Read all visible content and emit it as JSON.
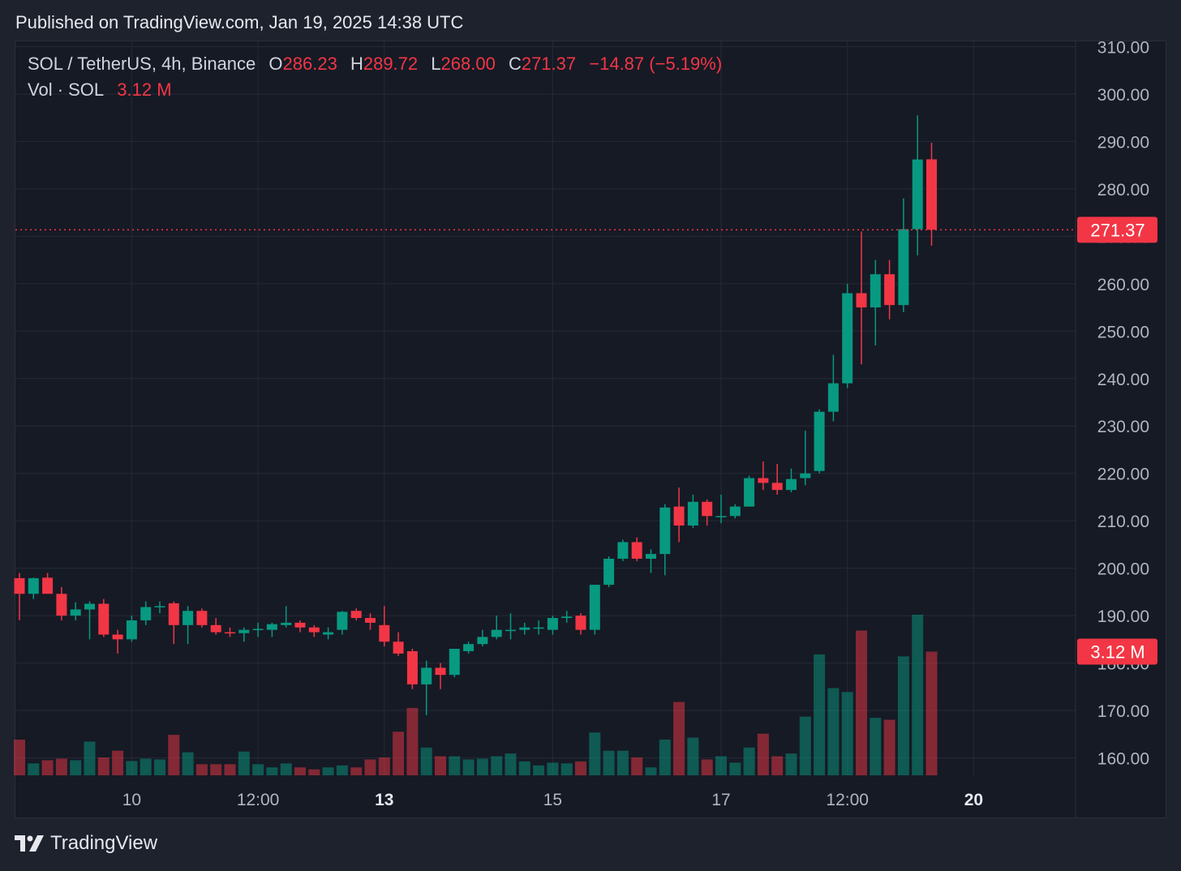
{
  "published_text": "Published on TradingView.com, Jan 19, 2025 14:38 UTC",
  "legend": {
    "symbol": "SOL / TetherUS, 4h, Binance",
    "open_label": "O",
    "open_value": "286.23",
    "high_label": "H",
    "high_value": "289.72",
    "low_label": "L",
    "low_value": "268.00",
    "close_label": "C",
    "close_value": "271.37",
    "change": "−14.87 (−5.19%)",
    "vol_label": "Vol · SOL",
    "vol_value": "3.12 M"
  },
  "price_badge": "271.37",
  "volume_badge": "3.12 M",
  "footer_brand": "TradingView",
  "icons": {
    "logo": "tradingview-logo-icon"
  },
  "colors": {
    "up": "#089981",
    "down": "#f23645",
    "background": "#161a25",
    "grid": "#252a36"
  },
  "chart_data": {
    "type": "candlestick",
    "title": "SOL / TetherUS, 4h, Binance",
    "y_ticks": [
      "310.00",
      "300.00",
      "290.00",
      "280.00",
      "270.00",
      "260.00",
      "250.00",
      "240.00",
      "230.00",
      "220.00",
      "210.00",
      "200.00",
      "190.00",
      "180.00",
      "170.00",
      "160.00"
    ],
    "ylim": [
      156.4,
      310.9
    ],
    "x_ticks": [
      {
        "label": "10",
        "index": 8,
        "bold": false
      },
      {
        "label": "12:00",
        "index": 17,
        "bold": false
      },
      {
        "label": "13",
        "index": 26,
        "bold": true
      },
      {
        "label": "15",
        "index": 38,
        "bold": false
      },
      {
        "label": "17",
        "index": 50,
        "bold": false
      },
      {
        "label": "12:00",
        "index": 59,
        "bold": false
      },
      {
        "label": "20",
        "index": 68,
        "bold": true
      }
    ],
    "grid": true,
    "candles": [
      {
        "o": 197.9,
        "h": 199.0,
        "l": 189.0,
        "c": 194.6,
        "v": 0.9
      },
      {
        "o": 194.6,
        "h": 198.0,
        "l": 193.5,
        "c": 197.9,
        "v": 0.3
      },
      {
        "o": 198.0,
        "h": 199.0,
        "l": 196.0,
        "c": 194.6,
        "v": 0.38
      },
      {
        "o": 194.6,
        "h": 196.0,
        "l": 189.0,
        "c": 190.0,
        "v": 0.42
      },
      {
        "o": 190.0,
        "h": 192.8,
        "l": 189.0,
        "c": 191.3,
        "v": 0.38
      },
      {
        "o": 191.3,
        "h": 193.0,
        "l": 185.0,
        "c": 192.5,
        "v": 0.85
      },
      {
        "o": 192.5,
        "h": 193.5,
        "l": 185.5,
        "c": 186.0,
        "v": 0.45
      },
      {
        "o": 186.0,
        "h": 187.0,
        "l": 182.0,
        "c": 185.0,
        "v": 0.62
      },
      {
        "o": 185.0,
        "h": 190.0,
        "l": 184.5,
        "c": 189.0,
        "v": 0.36
      },
      {
        "o": 189.0,
        "h": 193.0,
        "l": 188.0,
        "c": 191.8,
        "v": 0.42
      },
      {
        "o": 191.8,
        "h": 193.0,
        "l": 190.5,
        "c": 192.0,
        "v": 0.4
      },
      {
        "o": 192.6,
        "h": 193.0,
        "l": 184.0,
        "c": 188.0,
        "v": 1.02
      },
      {
        "o": 188.0,
        "h": 192.0,
        "l": 184.0,
        "c": 191.0,
        "v": 0.58
      },
      {
        "o": 191.0,
        "h": 191.5,
        "l": 187.5,
        "c": 188.0,
        "v": 0.28
      },
      {
        "o": 188.0,
        "h": 189.5,
        "l": 186.0,
        "c": 186.5,
        "v": 0.28
      },
      {
        "o": 186.5,
        "h": 187.5,
        "l": 185.5,
        "c": 186.3,
        "v": 0.28
      },
      {
        "o": 186.3,
        "h": 187.5,
        "l": 184.5,
        "c": 187.0,
        "v": 0.6
      },
      {
        "o": 187.0,
        "h": 188.5,
        "l": 185.5,
        "c": 187.2,
        "v": 0.28
      },
      {
        "o": 187.0,
        "h": 188.5,
        "l": 185.5,
        "c": 188.2,
        "v": 0.2
      },
      {
        "o": 188.0,
        "h": 192.0,
        "l": 187.5,
        "c": 188.5,
        "v": 0.3
      },
      {
        "o": 188.5,
        "h": 189.0,
        "l": 186.5,
        "c": 187.5,
        "v": 0.2
      },
      {
        "o": 187.5,
        "h": 188.0,
        "l": 185.5,
        "c": 186.5,
        "v": 0.15
      },
      {
        "o": 186.0,
        "h": 187.5,
        "l": 185.0,
        "c": 186.5,
        "v": 0.2
      },
      {
        "o": 187.0,
        "h": 191.0,
        "l": 186.0,
        "c": 190.8,
        "v": 0.25
      },
      {
        "o": 191.0,
        "h": 191.5,
        "l": 189.0,
        "c": 189.5,
        "v": 0.2
      },
      {
        "o": 189.5,
        "h": 190.5,
        "l": 187.0,
        "c": 188.5,
        "v": 0.4
      },
      {
        "o": 188.0,
        "h": 192.0,
        "l": 183.5,
        "c": 184.5,
        "v": 0.45
      },
      {
        "o": 184.5,
        "h": 186.5,
        "l": 181.5,
        "c": 182.0,
        "v": 1.1
      },
      {
        "o": 182.5,
        "h": 183.0,
        "l": 174.5,
        "c": 175.5,
        "v": 1.7
      },
      {
        "o": 175.5,
        "h": 180.5,
        "l": 169.0,
        "c": 179.0,
        "v": 0.7
      },
      {
        "o": 179.0,
        "h": 180.0,
        "l": 174.5,
        "c": 177.5,
        "v": 0.48
      },
      {
        "o": 177.5,
        "h": 183.0,
        "l": 177.0,
        "c": 183.0,
        "v": 0.48
      },
      {
        "o": 182.5,
        "h": 184.5,
        "l": 182.0,
        "c": 184.0,
        "v": 0.4
      },
      {
        "o": 184.0,
        "h": 187.0,
        "l": 183.5,
        "c": 185.5,
        "v": 0.42
      },
      {
        "o": 185.5,
        "h": 190.0,
        "l": 185.0,
        "c": 187.0,
        "v": 0.48
      },
      {
        "o": 187.0,
        "h": 190.5,
        "l": 185.0,
        "c": 187.0,
        "v": 0.55
      },
      {
        "o": 187.0,
        "h": 188.5,
        "l": 186.0,
        "c": 187.5,
        "v": 0.35
      },
      {
        "o": 187.5,
        "h": 189.0,
        "l": 186.0,
        "c": 187.5,
        "v": 0.25
      },
      {
        "o": 187.0,
        "h": 190.0,
        "l": 186.0,
        "c": 189.5,
        "v": 0.32
      },
      {
        "o": 189.5,
        "h": 191.0,
        "l": 188.5,
        "c": 189.8,
        "v": 0.3
      },
      {
        "o": 190.0,
        "h": 190.5,
        "l": 186.0,
        "c": 187.0,
        "v": 0.35
      },
      {
        "o": 187.0,
        "h": 196.0,
        "l": 186.0,
        "c": 196.5,
        "v": 1.08
      },
      {
        "o": 196.5,
        "h": 202.5,
        "l": 196.0,
        "c": 202.0,
        "v": 0.62
      },
      {
        "o": 202.0,
        "h": 206.0,
        "l": 201.5,
        "c": 205.5,
        "v": 0.62
      },
      {
        "o": 205.5,
        "h": 206.5,
        "l": 201.5,
        "c": 202.0,
        "v": 0.45
      },
      {
        "o": 202.0,
        "h": 204.0,
        "l": 199.0,
        "c": 203.0,
        "v": 0.2
      },
      {
        "o": 203.0,
        "h": 213.5,
        "l": 198.5,
        "c": 212.8,
        "v": 0.9
      },
      {
        "o": 213.0,
        "h": 217.0,
        "l": 205.5,
        "c": 209.0,
        "v": 1.85
      },
      {
        "o": 209.0,
        "h": 215.5,
        "l": 208.5,
        "c": 214.0,
        "v": 0.95
      },
      {
        "o": 214.0,
        "h": 214.5,
        "l": 209.0,
        "c": 211.0,
        "v": 0.4
      },
      {
        "o": 211.0,
        "h": 215.5,
        "l": 209.5,
        "c": 211.0,
        "v": 0.48
      },
      {
        "o": 211.0,
        "h": 213.5,
        "l": 210.5,
        "c": 213.0,
        "v": 0.32
      },
      {
        "o": 213.0,
        "h": 219.5,
        "l": 213.0,
        "c": 219.0,
        "v": 0.7
      },
      {
        "o": 219.0,
        "h": 222.5,
        "l": 216.5,
        "c": 218.0,
        "v": 1.05
      },
      {
        "o": 218.0,
        "h": 222.0,
        "l": 215.5,
        "c": 216.5,
        "v": 0.48
      },
      {
        "o": 216.5,
        "h": 221.0,
        "l": 216.0,
        "c": 218.8,
        "v": 0.55
      },
      {
        "o": 219.0,
        "h": 229.0,
        "l": 217.5,
        "c": 220.0,
        "v": 1.48
      },
      {
        "o": 220.5,
        "h": 233.5,
        "l": 220.0,
        "c": 233.0,
        "v": 3.05
      },
      {
        "o": 233.0,
        "h": 245.0,
        "l": 231.0,
        "c": 239.0,
        "v": 2.2
      },
      {
        "o": 239.0,
        "h": 260.0,
        "l": 238.0,
        "c": 258.0,
        "v": 2.1
      },
      {
        "o": 258.0,
        "h": 271.0,
        "l": 243.0,
        "c": 255.0,
        "v": 3.65
      },
      {
        "o": 255.0,
        "h": 265.0,
        "l": 247.0,
        "c": 262.0,
        "v": 1.45
      },
      {
        "o": 262.0,
        "h": 265.0,
        "l": 252.5,
        "c": 255.5,
        "v": 1.4
      },
      {
        "o": 255.5,
        "h": 278.0,
        "l": 254.0,
        "c": 271.5,
        "v": 3.0
      },
      {
        "o": 271.5,
        "h": 295.5,
        "l": 266.0,
        "c": 286.2,
        "v": 4.05
      },
      {
        "o": 286.23,
        "h": 289.72,
        "l": 268.0,
        "c": 271.37,
        "v": 3.12
      }
    ]
  }
}
